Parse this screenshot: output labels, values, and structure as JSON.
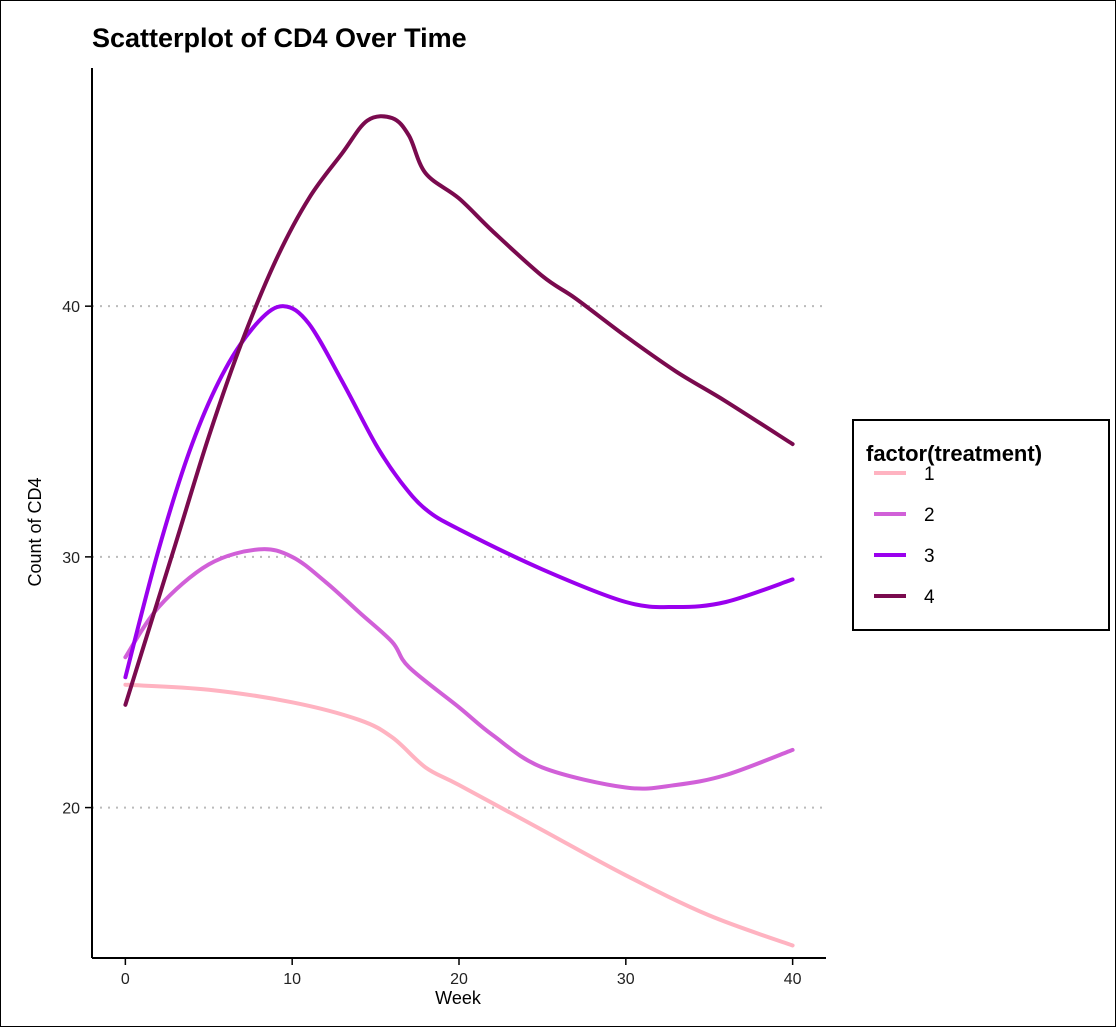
{
  "chart_data": {
    "type": "line",
    "title": "Scatterplot of CD4 Over Time",
    "xlabel": "Week",
    "ylabel": "Count of CD4",
    "xlim": [
      -2,
      42
    ],
    "ylim": [
      14,
      49.5
    ],
    "xticks": [
      0,
      10,
      20,
      30,
      40
    ],
    "yticks": [
      20,
      30,
      40
    ],
    "grid": "horizontal dotted at y ticks",
    "legend": {
      "title": "factor(treatment)",
      "placement": "right"
    },
    "series": [
      {
        "name": "1",
        "color": "#ffb3c1",
        "points": [
          [
            0,
            24.9
          ],
          [
            5,
            24.7
          ],
          [
            10,
            24.2
          ],
          [
            14,
            23.5
          ],
          [
            16,
            22.8
          ],
          [
            18,
            21.6
          ],
          [
            20,
            20.9
          ],
          [
            25,
            19.1
          ],
          [
            30,
            17.3
          ],
          [
            35,
            15.7
          ],
          [
            40,
            14.5
          ]
        ]
      },
      {
        "name": "2",
        "color": "#d160d8",
        "points": [
          [
            0,
            26.0
          ],
          [
            2,
            28.0
          ],
          [
            5,
            29.7
          ],
          [
            8,
            30.3
          ],
          [
            10,
            30.0
          ],
          [
            12,
            29.0
          ],
          [
            14,
            27.8
          ],
          [
            16,
            26.6
          ],
          [
            17,
            25.6
          ],
          [
            20,
            24.0
          ],
          [
            22,
            22.9
          ],
          [
            25,
            21.6
          ],
          [
            30,
            20.8
          ],
          [
            33,
            20.9
          ],
          [
            36,
            21.3
          ],
          [
            40,
            22.3
          ]
        ]
      },
      {
        "name": "3",
        "color": "#9a00ee",
        "points": [
          [
            0,
            25.2
          ],
          [
            2,
            30.3
          ],
          [
            4,
            34.5
          ],
          [
            6,
            37.5
          ],
          [
            8,
            39.4
          ],
          [
            9.5,
            40.0
          ],
          [
            11,
            39.3
          ],
          [
            13,
            37.0
          ],
          [
            15,
            34.5
          ],
          [
            16.5,
            33.0
          ],
          [
            18,
            31.9
          ],
          [
            20,
            31.1
          ],
          [
            25,
            29.5
          ],
          [
            30,
            28.2
          ],
          [
            33,
            28.0
          ],
          [
            36,
            28.2
          ],
          [
            40,
            29.1
          ]
        ]
      },
      {
        "name": "4",
        "color": "#7a0a4e",
        "points": [
          [
            0,
            24.1
          ],
          [
            3,
            30.5
          ],
          [
            5,
            34.8
          ],
          [
            7,
            38.6
          ],
          [
            9,
            41.8
          ],
          [
            11,
            44.3
          ],
          [
            13,
            46.1
          ],
          [
            14.5,
            47.4
          ],
          [
            16,
            47.5
          ],
          [
            17,
            46.8
          ],
          [
            18,
            45.3
          ],
          [
            20,
            44.3
          ],
          [
            22,
            43.0
          ],
          [
            25,
            41.2
          ],
          [
            27,
            40.3
          ],
          [
            30,
            38.8
          ],
          [
            33,
            37.4
          ],
          [
            36,
            36.2
          ],
          [
            40,
            34.5
          ]
        ]
      }
    ]
  }
}
